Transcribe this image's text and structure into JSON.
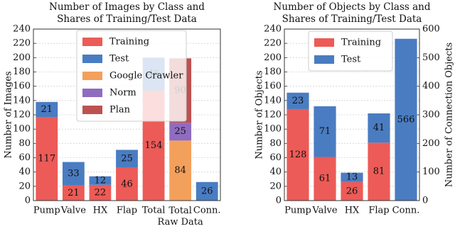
{
  "chart_data": [
    {
      "type": "bar",
      "stacked": true,
      "title": "Number of Images by Class and\nShares of Training/Test Data",
      "ylabel": "Number of Images",
      "categories": [
        "Pump",
        "Valve",
        "HX",
        "Flap",
        "Total",
        "Total\nRaw Data",
        "Conn."
      ],
      "ylim": [
        0,
        240
      ],
      "yticks": [
        0,
        20,
        40,
        60,
        80,
        100,
        120,
        140,
        160,
        180,
        200,
        220,
        240
      ],
      "grid": true,
      "legend": "upper center",
      "series": [
        {
          "name": "Training",
          "color": "#ec5b57",
          "values": [
            117,
            21,
            22,
            46,
            154,
            null,
            null
          ]
        },
        {
          "name": "Test",
          "color": "#4a7cc2",
          "values": [
            21,
            33,
            12,
            25,
            46,
            null,
            26
          ]
        },
        {
          "name": "Google Crawler",
          "color": "#f3a05c",
          "values": [
            null,
            null,
            null,
            null,
            null,
            84,
            null
          ]
        },
        {
          "name": "Norm",
          "color": "#8f6cc0",
          "values": [
            null,
            null,
            null,
            null,
            null,
            25,
            null
          ]
        },
        {
          "name": "Plan",
          "color": "#bd5150",
          "values": [
            null,
            null,
            null,
            null,
            null,
            90,
            null
          ]
        }
      ]
    },
    {
      "type": "bar",
      "stacked": true,
      "title": "Number of Objects by Class and\nShares of Training/Test Data",
      "ylabel": "Number of Objects",
      "y2label": "Number of Connection Objects",
      "categories": [
        "Pump",
        "Valve",
        "HX",
        "Flap",
        "Conn."
      ],
      "ylim": [
        0,
        240
      ],
      "yticks": [
        0,
        20,
        40,
        60,
        80,
        100,
        120,
        140,
        160,
        180,
        200,
        220,
        240
      ],
      "y2lim": [
        0,
        600
      ],
      "y2ticks": [
        0,
        100,
        200,
        300,
        400,
        500,
        600
      ],
      "grid": true,
      "legend": "upper left",
      "series": [
        {
          "name": "Training",
          "color": "#ec5b57",
          "values": [
            128,
            61,
            26,
            81,
            null
          ]
        },
        {
          "name": "Test",
          "color": "#4a7cc2",
          "values": [
            23,
            71,
            13,
            41,
            null
          ]
        },
        {
          "color": "#4a7cc2",
          "values": [
            null,
            null,
            null,
            null,
            566
          ],
          "axis": "y2"
        }
      ]
    }
  ]
}
